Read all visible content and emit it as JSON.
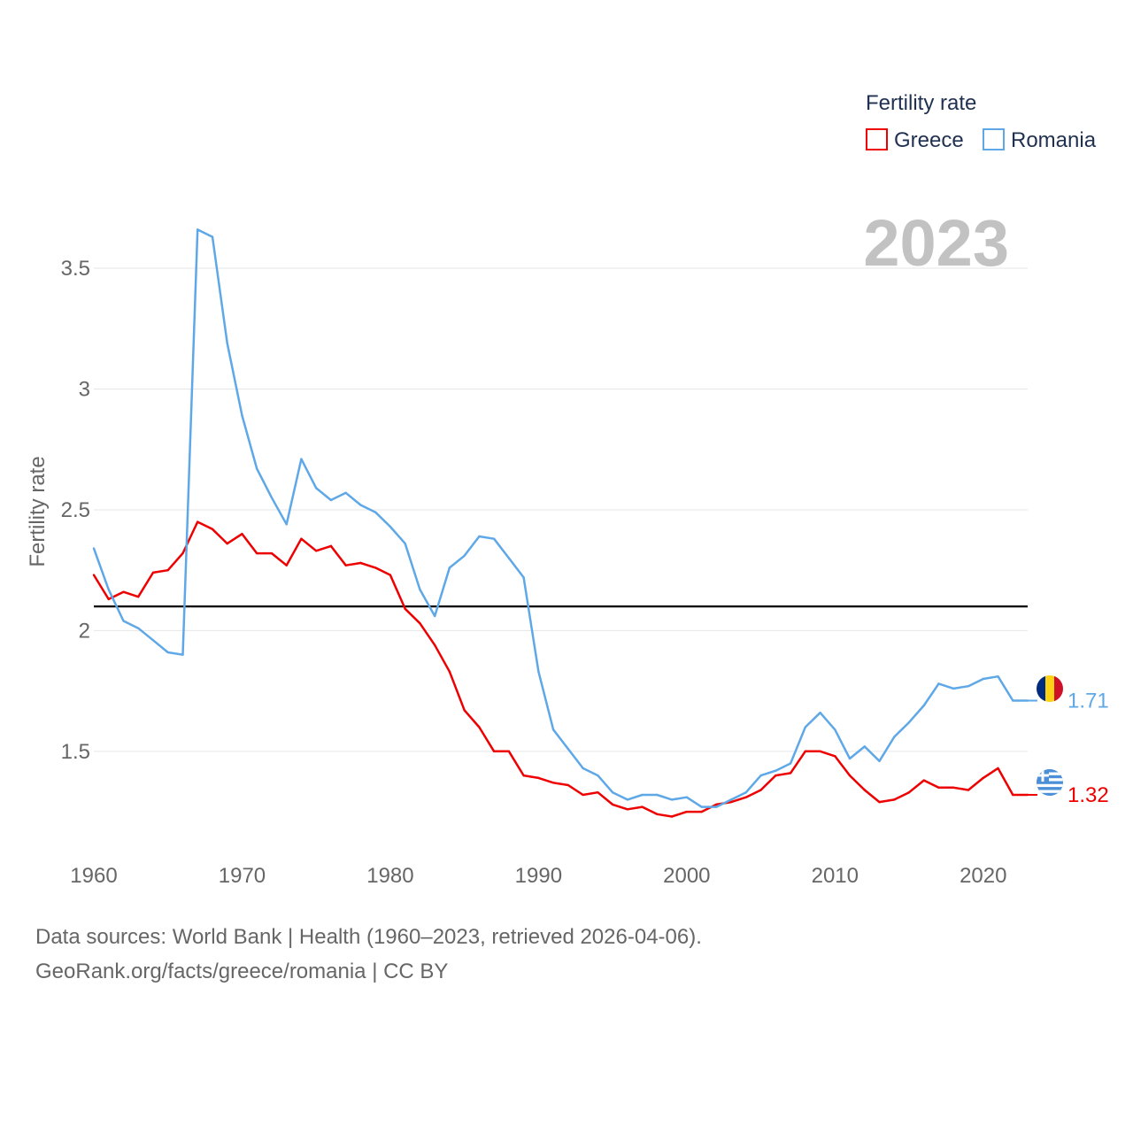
{
  "chart_data": {
    "type": "line",
    "ylabel": "Fertility rate",
    "legend_title": "Fertility rate",
    "year_label": "2023",
    "xlim": [
      1960,
      2023
    ],
    "ylim": [
      1.1,
      3.72
    ],
    "x_ticks": [
      "1960",
      "1970",
      "1980",
      "1990",
      "2000",
      "2010",
      "2020"
    ],
    "y_ticks": [
      "1.5",
      "2",
      "2.5",
      "3",
      "3.5"
    ],
    "reference_line": 2.1,
    "x": [
      1960,
      1961,
      1962,
      1963,
      1964,
      1965,
      1966,
      1967,
      1968,
      1969,
      1970,
      1971,
      1972,
      1973,
      1974,
      1975,
      1976,
      1977,
      1978,
      1979,
      1980,
      1981,
      1982,
      1983,
      1984,
      1985,
      1986,
      1987,
      1988,
      1989,
      1990,
      1991,
      1992,
      1993,
      1994,
      1995,
      1996,
      1997,
      1998,
      1999,
      2000,
      2001,
      2002,
      2003,
      2004,
      2005,
      2006,
      2007,
      2008,
      2009,
      2010,
      2011,
      2012,
      2013,
      2014,
      2015,
      2016,
      2017,
      2018,
      2019,
      2020,
      2021,
      2022,
      2023
    ],
    "series": [
      {
        "name": "Greece",
        "color": "#ee0000",
        "end_label": "1.32",
        "flag": "greece-flag-icon",
        "values": [
          2.23,
          2.13,
          2.16,
          2.14,
          2.24,
          2.25,
          2.32,
          2.45,
          2.42,
          2.36,
          2.4,
          2.32,
          2.32,
          2.27,
          2.38,
          2.33,
          2.35,
          2.27,
          2.28,
          2.26,
          2.23,
          2.09,
          2.03,
          1.94,
          1.83,
          1.67,
          1.6,
          1.5,
          1.5,
          1.4,
          1.39,
          1.37,
          1.36,
          1.32,
          1.33,
          1.28,
          1.26,
          1.27,
          1.24,
          1.23,
          1.25,
          1.25,
          1.28,
          1.29,
          1.31,
          1.34,
          1.4,
          1.41,
          1.5,
          1.5,
          1.48,
          1.4,
          1.34,
          1.29,
          1.3,
          1.33,
          1.38,
          1.35,
          1.35,
          1.34,
          1.39,
          1.43,
          1.32,
          1.32
        ]
      },
      {
        "name": "Romania",
        "color": "#5fa8e8",
        "end_label": "1.71",
        "flag": "romania-flag-icon",
        "values": [
          2.34,
          2.17,
          2.04,
          2.01,
          1.96,
          1.91,
          1.9,
          3.66,
          3.63,
          3.19,
          2.89,
          2.67,
          2.55,
          2.44,
          2.71,
          2.59,
          2.54,
          2.57,
          2.52,
          2.49,
          2.43,
          2.36,
          2.17,
          2.06,
          2.26,
          2.31,
          2.39,
          2.38,
          2.3,
          2.22,
          1.83,
          1.59,
          1.51,
          1.43,
          1.4,
          1.33,
          1.3,
          1.32,
          1.32,
          1.3,
          1.31,
          1.27,
          1.27,
          1.3,
          1.33,
          1.4,
          1.42,
          1.45,
          1.6,
          1.66,
          1.59,
          1.47,
          1.52,
          1.46,
          1.56,
          1.62,
          1.69,
          1.78,
          1.76,
          1.77,
          1.8,
          1.81,
          1.71,
          1.71
        ]
      }
    ]
  },
  "source": {
    "line1": "Data sources: World Bank | Health (1960–2023, retrieved 2026-04-06).",
    "line2": "GeoRank.org/facts/greece/romania | CC BY"
  }
}
